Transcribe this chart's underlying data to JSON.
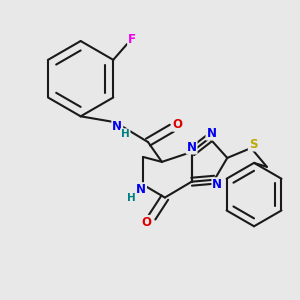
{
  "bg_color": "#e8e8e8",
  "bond_color": "#1a1a1a",
  "bond_width": 1.5,
  "atom_colors": {
    "N": "#0000ee",
    "O": "#dd0000",
    "S": "#bbaa00",
    "F": "#ee00ee",
    "NH_teal": "#008080",
    "C": "#1a1a1a"
  },
  "font_size": 8.5,
  "dbo": 0.013
}
